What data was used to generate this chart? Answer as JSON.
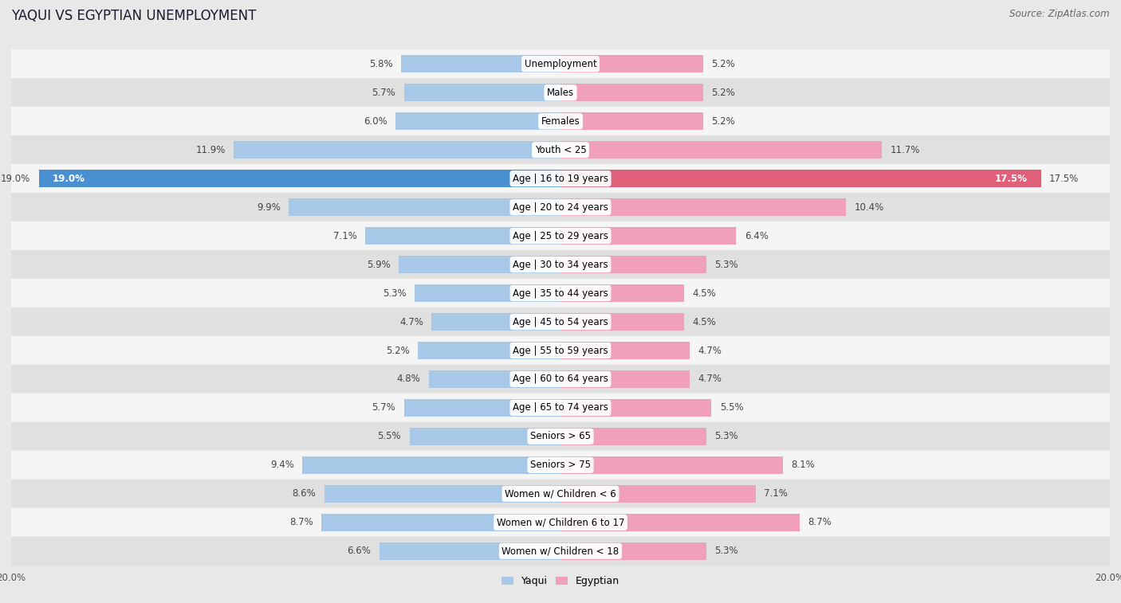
{
  "title": "YAQUI VS EGYPTIAN UNEMPLOYMENT",
  "source": "Source: ZipAtlas.com",
  "categories": [
    "Unemployment",
    "Males",
    "Females",
    "Youth < 25",
    "Age | 16 to 19 years",
    "Age | 20 to 24 years",
    "Age | 25 to 29 years",
    "Age | 30 to 34 years",
    "Age | 35 to 44 years",
    "Age | 45 to 54 years",
    "Age | 55 to 59 years",
    "Age | 60 to 64 years",
    "Age | 65 to 74 years",
    "Seniors > 65",
    "Seniors > 75",
    "Women w/ Children < 6",
    "Women w/ Children 6 to 17",
    "Women w/ Children < 18"
  ],
  "yaqui": [
    5.8,
    5.7,
    6.0,
    11.9,
    19.0,
    9.9,
    7.1,
    5.9,
    5.3,
    4.7,
    5.2,
    4.8,
    5.7,
    5.5,
    9.4,
    8.6,
    8.7,
    6.6
  ],
  "egyptian": [
    5.2,
    5.2,
    5.2,
    11.7,
    17.5,
    10.4,
    6.4,
    5.3,
    4.5,
    4.5,
    4.7,
    4.7,
    5.5,
    5.3,
    8.1,
    7.1,
    8.7,
    5.3
  ],
  "yaqui_color": "#a8c8e8",
  "egyptian_color": "#f0a0b8",
  "yaqui_color_highlight": "#4a90d0",
  "egyptian_color_highlight": "#e0607a",
  "bg_color": "#e8e8e8",
  "row_bg_light": "#f5f5f5",
  "row_bg_dark": "#e0e0e0",
  "max_val": 20.0,
  "label_fontsize": 8.5,
  "title_fontsize": 12,
  "source_fontsize": 8.5
}
